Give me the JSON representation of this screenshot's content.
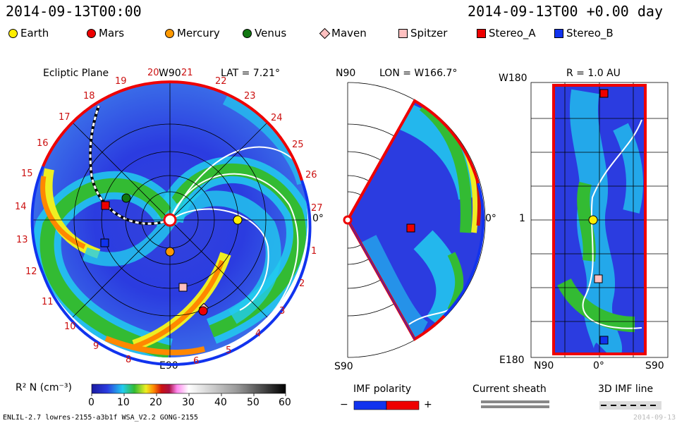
{
  "header": {
    "left_time": "2014-09-13T00:00",
    "right_time": "2014-09-13T00 +0.00 day"
  },
  "legend": [
    {
      "label": "Earth",
      "color": "#ffee00",
      "shape": "circle"
    },
    {
      "label": "Mars",
      "color": "#ee0000",
      "shape": "circle"
    },
    {
      "label": "Mercury",
      "color": "#ff9900",
      "shape": "circle"
    },
    {
      "label": "Venus",
      "color": "#117711",
      "shape": "circle"
    },
    {
      "label": "Maven",
      "color": "#ffc0c0",
      "shape": "diamond"
    },
    {
      "label": "Spitzer",
      "color": "#ffc0c0",
      "shape": "square"
    },
    {
      "label": "Stereo_A",
      "color": "#ee0000",
      "shape": "square"
    },
    {
      "label": "Stereo_B",
      "color": "#1133ee",
      "shape": "square"
    }
  ],
  "panels": {
    "ecliptic": {
      "title": "Ecliptic Plane",
      "top": "W90",
      "bottom": "E90",
      "right": "0°",
      "lat": "LAT = 7.21°",
      "ticks": [
        "1",
        "2",
        "3",
        "4",
        "5",
        "6",
        "8",
        "9",
        "10",
        "11",
        "12",
        "13",
        "14",
        "15",
        "16",
        "17",
        "18",
        "19",
        "20",
        "21",
        "22",
        "23",
        "24",
        "25",
        "26",
        "27"
      ]
    },
    "meridional": {
      "top": "N90",
      "bottom": "S90",
      "right": "0°",
      "lon": "LON = W166.7°"
    },
    "radial": {
      "title": "R = 1.0 AU",
      "top_left": "W180",
      "mid_left": "1",
      "bottom_left": "E180",
      "bottom_labels": [
        "N90",
        "0°",
        "S90"
      ]
    }
  },
  "colorbar": {
    "label": "R² N (cm⁻³)",
    "ticks": [
      "0",
      "10",
      "20",
      "30",
      "40",
      "50",
      "60"
    ],
    "range": [
      0,
      60
    ]
  },
  "imf": {
    "title": "IMF polarity",
    "minus": "−",
    "plus": "+",
    "neg_color": "#1133ee",
    "pos_color": "#ee0000"
  },
  "current_sheath": {
    "title": "Current sheath"
  },
  "imf_line": {
    "title": "3D IMF line"
  },
  "footer": {
    "left": "ENLIL-2.7 lowres-2155-a3b1f WSA_V2.2 GONG-2155",
    "right": "2014-09-13"
  },
  "colors": {
    "bg_low": "#2b3ce0",
    "cyan": "#22ccee",
    "green": "#33bb33",
    "yellow": "#eeee22",
    "orange": "#ff8800",
    "red": "#dd1111"
  }
}
